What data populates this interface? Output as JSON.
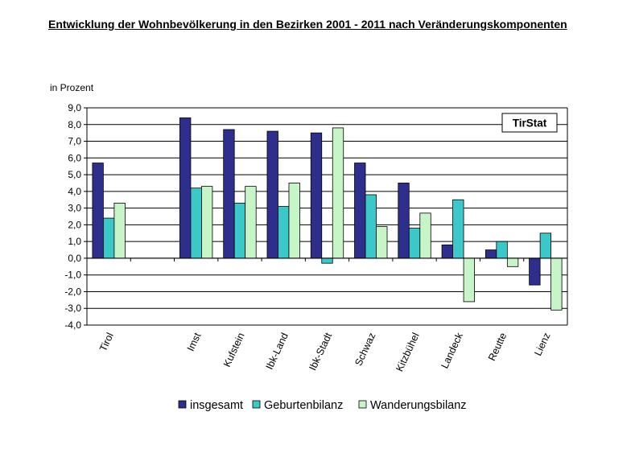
{
  "title": "Entwicklung der Wohnbevölkerung in den Bezirken 2001 - 2011 nach Veränderungskomponenten",
  "badge": "TirStat",
  "chart_data": {
    "type": "bar",
    "title": "Entwicklung der Wohnbevölkerung in den Bezirken 2001 - 2011 nach Veränderungskomponenten",
    "ylabel": "in Prozent",
    "ylim": [
      -4.0,
      9.0
    ],
    "y_ticks": [
      "9,0",
      "8,0",
      "7,0",
      "6,0",
      "5,0",
      "4,0",
      "3,0",
      "2,0",
      "1,0",
      "0,0",
      "-1,0",
      "-2,0",
      "-3,0",
      "-4,0"
    ],
    "grid": true,
    "legend_position": "bottom",
    "categories": [
      "Tirol",
      "",
      "Imst",
      "Kufstein",
      "Ibk-Land",
      "Ibk-Stadt",
      "Schwaz",
      "Kitzbühel",
      "Landeck",
      "Reutte",
      "Lienz"
    ],
    "series": [
      {
        "name": "insgesamt",
        "color": "#2e2e8c",
        "values": [
          5.7,
          null,
          8.4,
          7.7,
          7.6,
          7.5,
          5.7,
          4.5,
          0.8,
          0.5,
          -1.6
        ]
      },
      {
        "name": "Geburtenbilanz",
        "color": "#3cc8c8",
        "values": [
          2.4,
          null,
          4.2,
          3.3,
          3.1,
          -0.3,
          3.8,
          1.8,
          3.5,
          1.0,
          1.5
        ]
      },
      {
        "name": "Wanderungsbilanz",
        "color": "#c8f5c8",
        "values": [
          3.3,
          null,
          4.3,
          4.3,
          4.5,
          7.8,
          1.9,
          2.7,
          -2.6,
          -0.5,
          -3.1
        ]
      }
    ]
  }
}
